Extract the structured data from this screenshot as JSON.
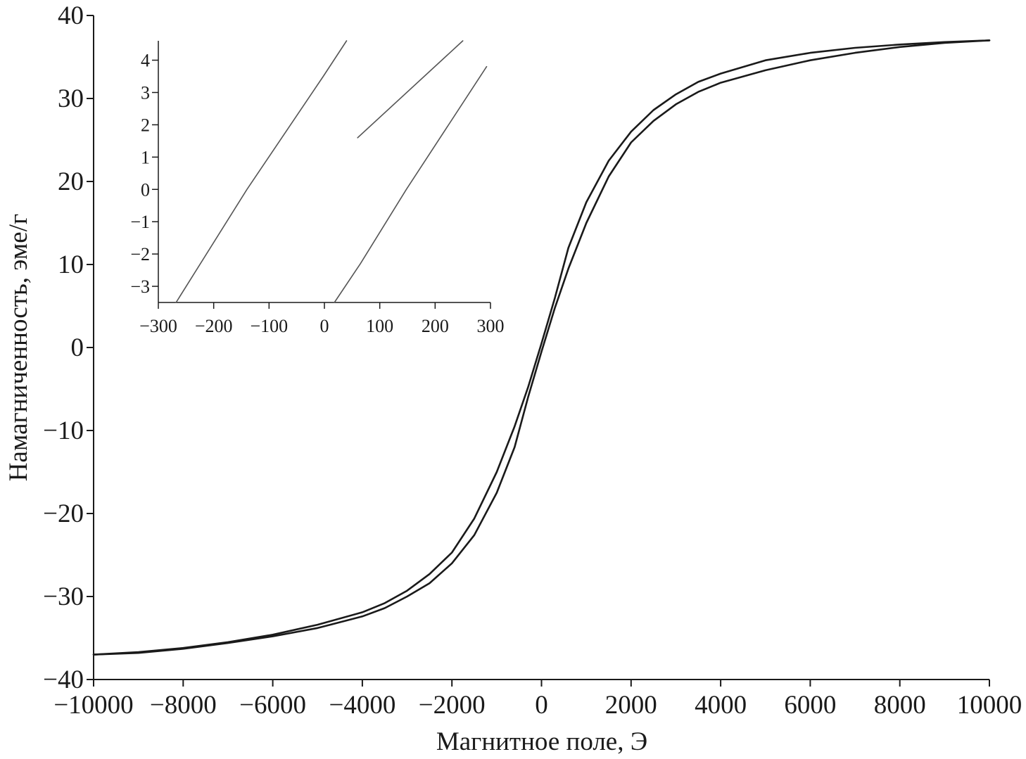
{
  "chart_data": [
    {
      "type": "line",
      "xlabel": "Магнитное поле, Э",
      "ylabel": "Намагниченность, эме/г",
      "xlim": [
        -10000,
        10000
      ],
      "ylim": [
        -40,
        40
      ],
      "x_ticks": [
        -10000,
        -8000,
        -6000,
        -4000,
        -2000,
        0,
        2000,
        4000,
        6000,
        8000,
        10000
      ],
      "y_ticks": [
        -40,
        -30,
        -20,
        -10,
        0,
        10,
        20,
        30,
        40
      ],
      "x_tick_labels": [
        "−10000",
        "−8000",
        "−6000",
        "−4000",
        "−2000",
        "0",
        "2000",
        "4000",
        "6000",
        "8000",
        "10000"
      ],
      "y_tick_labels": [
        "−40",
        "−30",
        "−20",
        "−10",
        "0",
        "10",
        "20",
        "30",
        "40"
      ],
      "grid": false,
      "color": "#1a1a1a",
      "series": [
        {
          "x": [
            -10000,
            -9000,
            -8000,
            -7000,
            -6000,
            -5000,
            -4000,
            -3500,
            -3000,
            -2500,
            -2000,
            -1500,
            -1000,
            -600,
            -300,
            0,
            300,
            600,
            1000,
            1500,
            2000,
            2500,
            3000,
            3500,
            4000,
            5000,
            6000,
            7000,
            8000,
            9000,
            10000
          ],
          "y": [
            -37.0,
            -36.7,
            -36.2,
            -35.5,
            -34.6,
            -33.4,
            -31.9,
            -30.8,
            -29.3,
            -27.3,
            -24.7,
            -20.6,
            -15.0,
            -9.5,
            -4.8,
            0.5,
            6.0,
            12.0,
            17.5,
            22.5,
            26.0,
            28.6,
            30.5,
            32.0,
            33.0,
            34.6,
            35.5,
            36.1,
            36.5,
            36.8,
            37.0
          ]
        },
        {
          "x": [
            -10000,
            -9000,
            -8000,
            -7000,
            -6000,
            -5000,
            -4000,
            -3500,
            -3000,
            -2500,
            -2000,
            -1500,
            -1000,
            -600,
            -300,
            0,
            300,
            600,
            1000,
            1500,
            2000,
            2500,
            3000,
            3500,
            4000,
            5000,
            6000,
            7000,
            8000,
            9000,
            10000
          ],
          "y": [
            -37.0,
            -36.8,
            -36.3,
            -35.6,
            -34.8,
            -33.8,
            -32.4,
            -31.4,
            -30.0,
            -28.4,
            -26.0,
            -22.6,
            -17.5,
            -12.0,
            -6.0,
            -0.5,
            4.8,
            9.5,
            15.0,
            20.6,
            24.7,
            27.3,
            29.3,
            30.8,
            31.9,
            33.4,
            34.6,
            35.5,
            36.2,
            36.7,
            37.0
          ]
        }
      ]
    },
    {
      "type": "line",
      "xlim": [
        -300,
        300
      ],
      "ylim": [
        -3.5,
        4.6
      ],
      "x_ticks": [
        -300,
        -200,
        -100,
        0,
        100,
        200,
        300
      ],
      "y_ticks": [
        -3,
        -2,
        -1,
        0,
        1,
        2,
        3,
        4
      ],
      "x_tick_labels": [
        "−300",
        "−200",
        "−100",
        "0",
        "100",
        "200",
        "300"
      ],
      "y_tick_labels": [
        "−3",
        "−2",
        "−1",
        "0",
        "1",
        "2",
        "3",
        "4"
      ],
      "grid": false,
      "color": "#555555",
      "series": [
        {
          "x": [
            -268,
            -140,
            -2,
            40
          ],
          "y": [
            -3.5,
            0,
            3.5,
            4.6
          ]
        },
        {
          "x": [
            60,
            250
          ],
          "y": [
            1.6,
            4.6
          ]
        },
        {
          "x": [
            18,
            65,
            148,
            293
          ],
          "y": [
            -3.5,
            -2.3,
            0,
            3.8
          ]
        }
      ]
    }
  ]
}
